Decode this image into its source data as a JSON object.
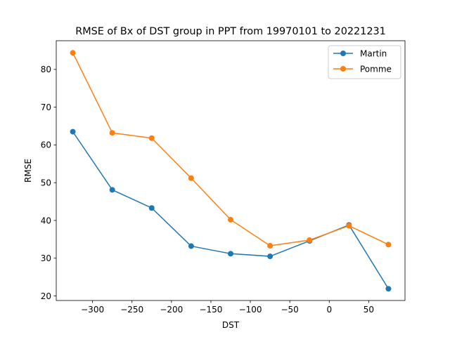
{
  "chart_data": {
    "type": "line",
    "title": "RMSE of Bx of DST group in PPT from 19970101 to 20221231",
    "xlabel": "DST",
    "ylabel": "RMSE",
    "x": [
      -325,
      -275,
      -225,
      -175,
      -125,
      -75,
      -25,
      25,
      75
    ],
    "xlim": [
      -346,
      96
    ],
    "ylim": [
      18.8,
      87.6
    ],
    "xticks": [
      -300,
      -250,
      -200,
      -150,
      -100,
      -50,
      0,
      50
    ],
    "xtick_labels": [
      "−300",
      "−250",
      "−200",
      "−150",
      "−100",
      "−50",
      "0",
      "50"
    ],
    "yticks": [
      20,
      30,
      40,
      50,
      60,
      70,
      80
    ],
    "ytick_labels": [
      "20",
      "30",
      "40",
      "50",
      "60",
      "70",
      "80"
    ],
    "grid": false,
    "legend_position": "top-right",
    "series": [
      {
        "name": "Martin",
        "color": "#1f77b4",
        "values": [
          63.5,
          48.1,
          43.3,
          33.2,
          31.2,
          30.5,
          34.6,
          38.8,
          21.9
        ]
      },
      {
        "name": "Pomme",
        "color": "#ff7f0e",
        "values": [
          84.4,
          63.2,
          61.8,
          51.2,
          40.2,
          33.3,
          34.8,
          38.6,
          33.6
        ]
      }
    ]
  }
}
